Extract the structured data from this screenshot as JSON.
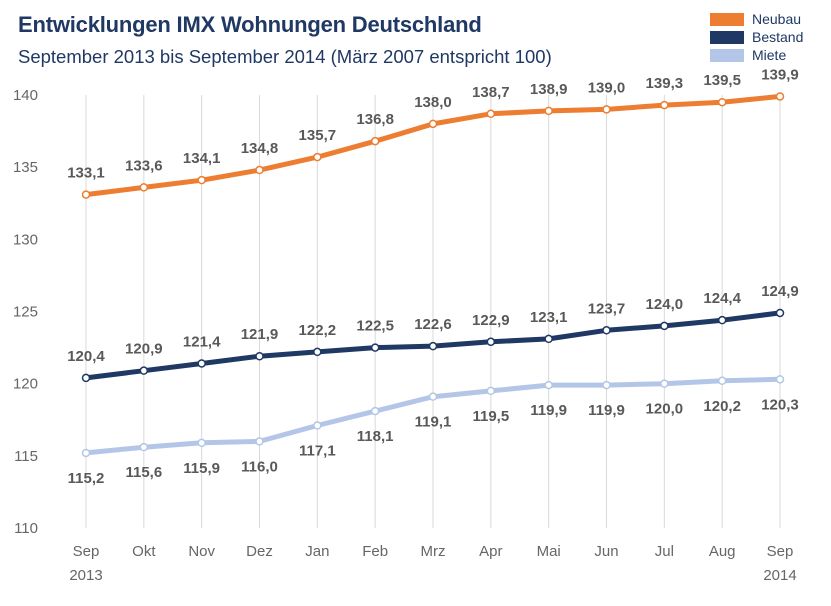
{
  "chart_data": {
    "type": "line",
    "title": "Entwicklungen IMX Wohnungen Deutschland",
    "subtitle": "September 2013 bis September 2014 (März 2007 entspricht 100)",
    "categories": [
      "Sep",
      "Okt",
      "Nov",
      "Dez",
      "Jan",
      "Feb",
      "Mrz",
      "Apr",
      "Mai",
      "Jun",
      "Jul",
      "Aug",
      "Sep"
    ],
    "category_sublabels": [
      "2013",
      "",
      "",
      "",
      "",
      "",
      "",
      "",
      "",
      "",
      "",
      "",
      "2014"
    ],
    "ylim": [
      110,
      140
    ],
    "yticks": [
      110,
      115,
      120,
      125,
      130,
      135,
      140
    ],
    "grid": "vertical",
    "legend_position": "top-right",
    "series": [
      {
        "name": "Neubau",
        "color": "#ed7d31",
        "values": [
          133.1,
          133.6,
          134.1,
          134.8,
          135.7,
          136.8,
          138.0,
          138.7,
          138.9,
          139.0,
          139.3,
          139.5,
          139.9
        ],
        "labels": [
          "133,1",
          "133,6",
          "134,1",
          "134,8",
          "135,7",
          "136,8",
          "138,0",
          "138,7",
          "138,9",
          "139,0",
          "139,3",
          "139,5",
          "139,9"
        ]
      },
      {
        "name": "Bestand",
        "color": "#1f3864",
        "values": [
          120.4,
          120.9,
          121.4,
          121.9,
          122.2,
          122.5,
          122.6,
          122.9,
          123.1,
          123.7,
          124.0,
          124.4,
          124.9
        ],
        "labels": [
          "120,4",
          "120,9",
          "121,4",
          "121,9",
          "122,2",
          "122,5",
          "122,6",
          "122,9",
          "123,1",
          "123,7",
          "124,0",
          "124,4",
          "124,9"
        ]
      },
      {
        "name": "Miete",
        "color": "#b4c6e7",
        "values": [
          115.2,
          115.6,
          115.9,
          116.0,
          117.1,
          118.1,
          119.1,
          119.5,
          119.9,
          119.9,
          120.0,
          120.2,
          120.3
        ],
        "labels": [
          "115,2",
          "115,6",
          "115,9",
          "116,0",
          "117,1",
          "118,1",
          "119,1",
          "119,5",
          "119,9",
          "119,9",
          "120,0",
          "120,2",
          "120,3"
        ]
      }
    ]
  }
}
